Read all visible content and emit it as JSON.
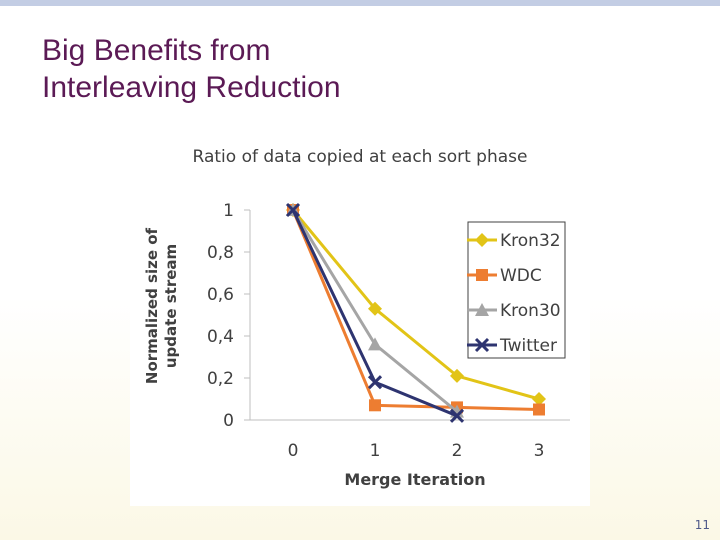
{
  "slide": {
    "title_line1": "Big Benefits from",
    "title_line2": "Interleaving Reduction",
    "page_number": "11"
  },
  "colors": {
    "title": "#5b1a55",
    "top_bar": "#c3cde4",
    "Kron32": "#e2c417",
    "WDC": "#ed7d31",
    "Kron30": "#a5a5a5",
    "Twitter": "#2e3470"
  },
  "chart_data": {
    "type": "line",
    "title": "Ratio of data copied at each sort phase",
    "xlabel": "Merge Iteration",
    "ylabel_line1": "Normalized size of",
    "ylabel_line2": "update stream",
    "x": [
      0,
      1,
      2,
      3
    ],
    "x_tick_labels": [
      "0",
      "1",
      "2",
      "3"
    ],
    "y_tick_labels": [
      "0",
      "0,2",
      "0,4",
      "0,6",
      "0,8",
      "1"
    ],
    "y_ticks": [
      0,
      0.2,
      0.4,
      0.6,
      0.8,
      1
    ],
    "ylim": [
      0,
      1
    ],
    "xlim": [
      0,
      3
    ],
    "grid": false,
    "legend_position": "top-right",
    "series": [
      {
        "name": "Kron32",
        "marker": "diamond",
        "x": [
          0,
          1,
          2,
          3
        ],
        "values": [
          1.0,
          0.53,
          0.21,
          0.1
        ]
      },
      {
        "name": "WDC",
        "marker": "square",
        "x": [
          0,
          1,
          2,
          3
        ],
        "values": [
          1.0,
          0.07,
          0.06,
          0.05
        ]
      },
      {
        "name": "Kron30",
        "marker": "triangle",
        "x": [
          0,
          1,
          2
        ],
        "values": [
          1.0,
          0.36,
          0.04
        ]
      },
      {
        "name": "Twitter",
        "marker": "cross",
        "x": [
          0,
          1,
          2
        ],
        "values": [
          1.0,
          0.18,
          0.02
        ]
      }
    ]
  }
}
